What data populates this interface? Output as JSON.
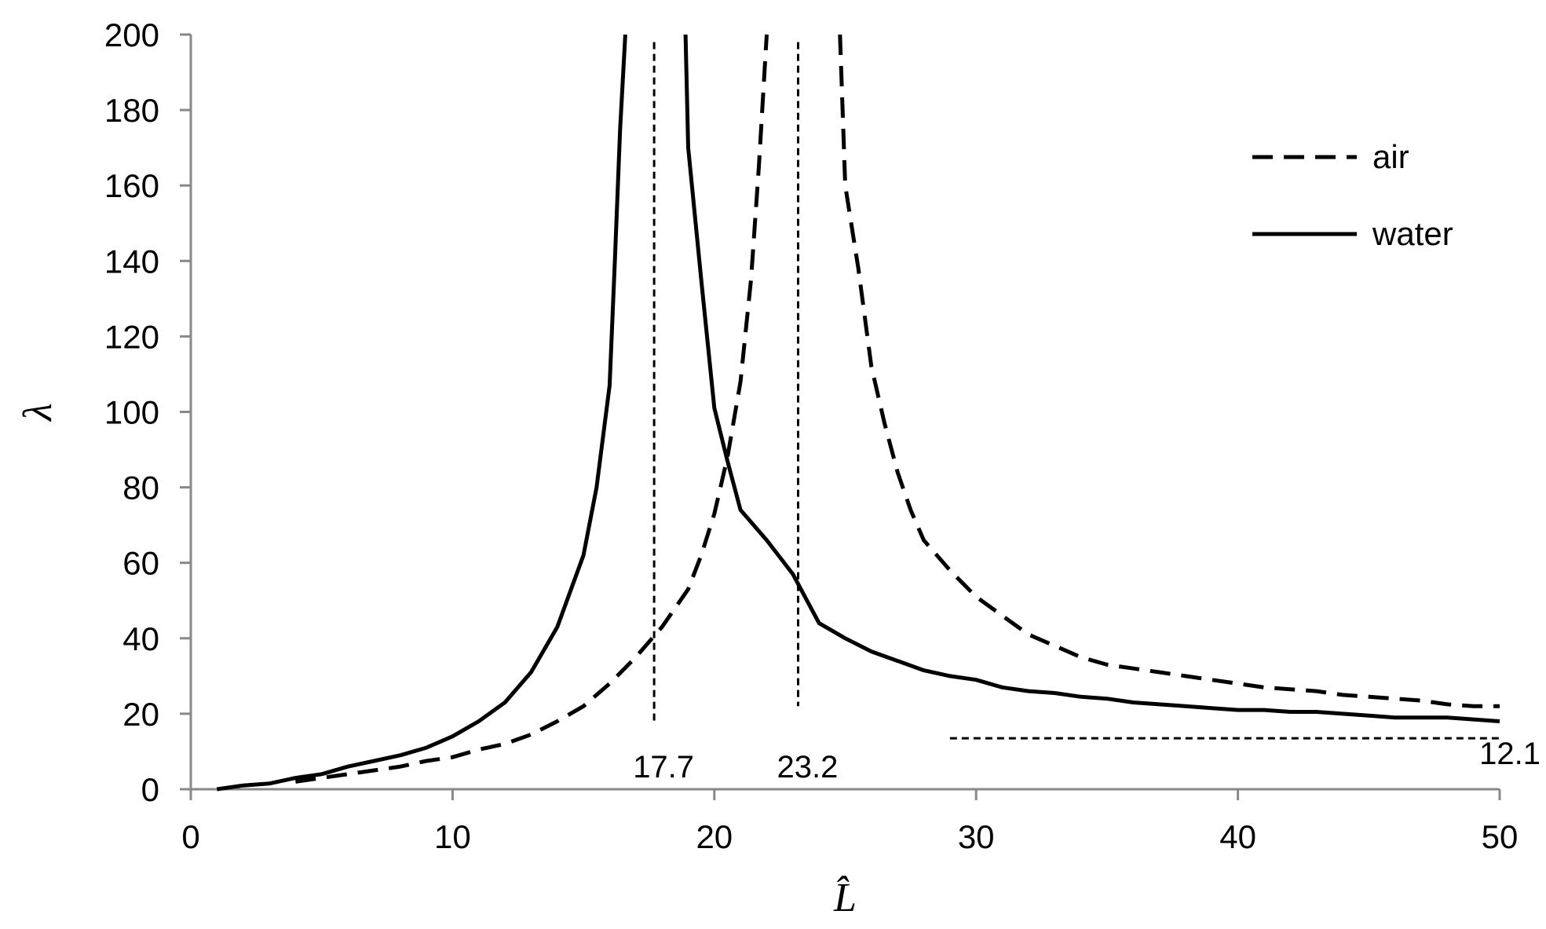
{
  "chart_data": {
    "type": "line",
    "xlabel": "L̂",
    "ylabel": "λ",
    "xlim": [
      0,
      50
    ],
    "ylim": [
      0,
      200
    ],
    "x_ticks": [
      0,
      10,
      20,
      30,
      40,
      50
    ],
    "y_ticks": [
      0,
      20,
      40,
      60,
      80,
      100,
      120,
      140,
      160,
      180,
      200
    ],
    "grid": false,
    "legend_position": "top-right",
    "series": [
      {
        "name": "air",
        "style": "dashed",
        "color": "#000000",
        "segments": [
          [
            [
              4,
              2
            ],
            [
              5,
              3
            ],
            [
              6,
              4
            ],
            [
              7,
              5
            ],
            [
              8,
              6
            ],
            [
              9,
              7.5
            ],
            [
              10,
              8.5
            ],
            [
              11,
              10.5
            ],
            [
              12,
              12
            ],
            [
              13,
              14.5
            ],
            [
              14,
              18
            ],
            [
              15,
              22
            ],
            [
              16,
              28
            ],
            [
              17,
              35
            ],
            [
              18,
              43
            ],
            [
              19,
              53
            ],
            [
              19.5,
              62
            ],
            [
              20,
              73
            ],
            [
              20.5,
              88
            ],
            [
              21,
              108
            ],
            [
              21.4,
              135
            ],
            [
              21.7,
              165
            ],
            [
              22,
              200
            ]
          ],
          [
            [
              24.8,
              200
            ],
            [
              25,
              160
            ],
            [
              25.5,
              138
            ],
            [
              26,
              112
            ],
            [
              26.5,
              97
            ],
            [
              27,
              84
            ],
            [
              27.5,
              74
            ],
            [
              28,
              66
            ],
            [
              29,
              58
            ],
            [
              30,
              51
            ],
            [
              31,
              46
            ],
            [
              32,
              41
            ],
            [
              33,
              38
            ],
            [
              34,
              35
            ],
            [
              35,
              33
            ],
            [
              36,
              32
            ],
            [
              37,
              31
            ],
            [
              38,
              30
            ],
            [
              39,
              29
            ],
            [
              40,
              28
            ],
            [
              41,
              27
            ],
            [
              42,
              26.5
            ],
            [
              43,
              26
            ],
            [
              44,
              25
            ],
            [
              45,
              24.5
            ],
            [
              46,
              24
            ],
            [
              47,
              23.5
            ],
            [
              48,
              22.5
            ],
            [
              49,
              22
            ],
            [
              50,
              22
            ]
          ]
        ]
      },
      {
        "name": "water",
        "style": "solid",
        "color": "#000000",
        "segments": [
          [
            [
              1,
              0
            ],
            [
              2,
              1
            ],
            [
              3,
              1.5
            ],
            [
              4,
              3
            ],
            [
              5,
              4
            ],
            [
              6,
              6
            ],
            [
              7,
              7.5
            ],
            [
              8,
              9
            ],
            [
              9,
              11
            ],
            [
              10,
              14
            ],
            [
              11,
              18
            ],
            [
              12,
              23
            ],
            [
              13,
              31
            ],
            [
              14,
              43
            ],
            [
              15,
              62
            ],
            [
              15.5,
              80
            ],
            [
              16,
              107
            ],
            [
              16.2,
              140
            ],
            [
              16.4,
              175
            ],
            [
              16.6,
              200
            ]
          ],
          [
            [
              18.9,
              200
            ],
            [
              19,
              170
            ],
            [
              19.5,
              135
            ],
            [
              20,
              101
            ],
            [
              20.5,
              87
            ],
            [
              21,
              74
            ],
            [
              22,
              66
            ],
            [
              23,
              57
            ],
            [
              24,
              44
            ],
            [
              25,
              40
            ],
            [
              26,
              36.5
            ],
            [
              27,
              34
            ],
            [
              28,
              31.5
            ],
            [
              29,
              30
            ],
            [
              30,
              29
            ],
            [
              31,
              27
            ],
            [
              32,
              26
            ],
            [
              33,
              25.5
            ],
            [
              34,
              24.5
            ],
            [
              35,
              24
            ],
            [
              36,
              23
            ],
            [
              37,
              22.5
            ],
            [
              38,
              22
            ],
            [
              39,
              21.5
            ],
            [
              40,
              21
            ],
            [
              41,
              21
            ],
            [
              42,
              20.5
            ],
            [
              43,
              20.5
            ],
            [
              44,
              20
            ],
            [
              45,
              19.5
            ],
            [
              46,
              19
            ],
            [
              47,
              19
            ],
            [
              48,
              19
            ],
            [
              49,
              18.5
            ],
            [
              50,
              18
            ]
          ]
        ]
      }
    ],
    "reference_lines": [
      {
        "orientation": "vertical",
        "x": 17.7,
        "y_range": [
          18,
          198
        ],
        "label": "17.7"
      },
      {
        "orientation": "vertical",
        "x": 23.2,
        "y_range": [
          22,
          198
        ],
        "label": "23.2"
      },
      {
        "orientation": "horizontal",
        "y": 13.5,
        "x_range": [
          29,
          50
        ],
        "label": "12.1"
      }
    ]
  }
}
